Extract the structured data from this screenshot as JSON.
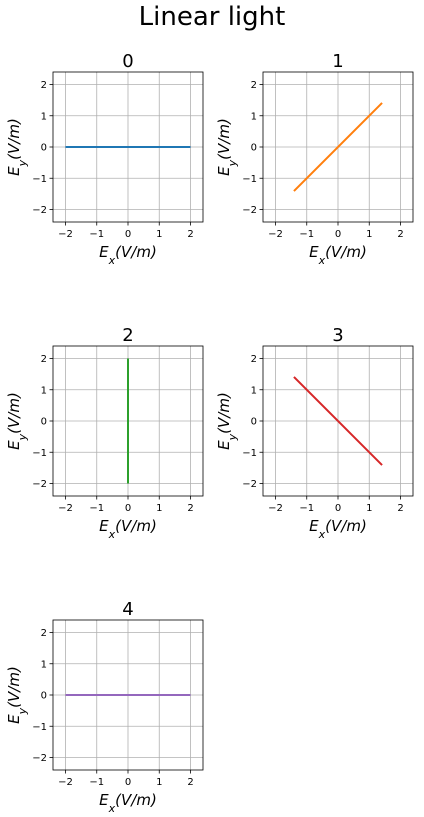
{
  "figure": {
    "title": "Linear light"
  },
  "chart_data": [
    {
      "type": "line",
      "title": "0",
      "xlabel": "E_x(V/m)",
      "ylabel": "E_y(V/m)",
      "xlim": [
        -2.4,
        2.4
      ],
      "ylim": [
        -2.4,
        2.4
      ],
      "ticks": [
        -2,
        -1,
        0,
        1,
        2
      ],
      "grid": true,
      "series": [
        {
          "color": "#1f77b4",
          "x": [
            -2,
            2
          ],
          "y": [
            0,
            0
          ]
        }
      ]
    },
    {
      "type": "line",
      "title": "1",
      "xlabel": "E_x(V/m)",
      "ylabel": "E_y(V/m)",
      "xlim": [
        -2.4,
        2.4
      ],
      "ylim": [
        -2.4,
        2.4
      ],
      "ticks": [
        -2,
        -1,
        0,
        1,
        2
      ],
      "grid": true,
      "series": [
        {
          "color": "#ff7f0e",
          "x": [
            -1.41,
            1.41
          ],
          "y": [
            -1.41,
            1.41
          ]
        }
      ]
    },
    {
      "type": "line",
      "title": "2",
      "xlabel": "E_x(V/m)",
      "ylabel": "E_y(V/m)",
      "xlim": [
        -2.4,
        2.4
      ],
      "ylim": [
        -2.4,
        2.4
      ],
      "ticks": [
        -2,
        -1,
        0,
        1,
        2
      ],
      "grid": true,
      "series": [
        {
          "color": "#2ca02c",
          "x": [
            0,
            0
          ],
          "y": [
            -2,
            2
          ]
        }
      ]
    },
    {
      "type": "line",
      "title": "3",
      "xlabel": "E_x(V/m)",
      "ylabel": "E_y(V/m)",
      "xlim": [
        -2.4,
        2.4
      ],
      "ylim": [
        -2.4,
        2.4
      ],
      "ticks": [
        -2,
        -1,
        0,
        1,
        2
      ],
      "grid": true,
      "series": [
        {
          "color": "#d62728",
          "x": [
            -1.41,
            1.41
          ],
          "y": [
            1.41,
            -1.41
          ]
        }
      ]
    },
    {
      "type": "line",
      "title": "4",
      "xlabel": "E_x(V/m)",
      "ylabel": "E_y(V/m)",
      "xlim": [
        -2.4,
        2.4
      ],
      "ylim": [
        -2.4,
        2.4
      ],
      "ticks": [
        -2,
        -1,
        0,
        1,
        2
      ],
      "grid": true,
      "series": [
        {
          "color": "#9467bd",
          "x": [
            -2,
            2
          ],
          "y": [
            0,
            0
          ]
        }
      ]
    }
  ]
}
